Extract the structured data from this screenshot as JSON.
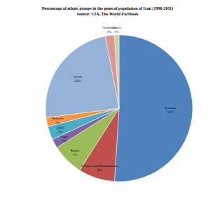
{
  "chart_data": {
    "type": "pie",
    "title": "Percentage of ethnic groups in the general population of Iran (1996-2011)",
    "subtitle": "Source: CIA, The World Factbook",
    "categories": [
      "Persians",
      "Gilakis and Mazandaranis",
      "Kurds",
      "Lurs",
      "Arabs",
      "Balochs",
      "Azeris",
      "Turkmen",
      "others"
    ],
    "values": [
      51,
      8,
      7,
      2,
      3,
      2,
      24,
      2,
      1
    ],
    "value_labels": [
      "51%",
      "8%",
      "7%",
      "2%",
      "3%",
      "2%",
      "24%",
      "2%",
      "1%"
    ],
    "colors": [
      "#4f81bd",
      "#c0504d",
      "#9bbb59",
      "#8064a2",
      "#4bacc6",
      "#f79646",
      "#95b3d7",
      "#d99694",
      "#c3d69b"
    ],
    "data_labels": true
  }
}
